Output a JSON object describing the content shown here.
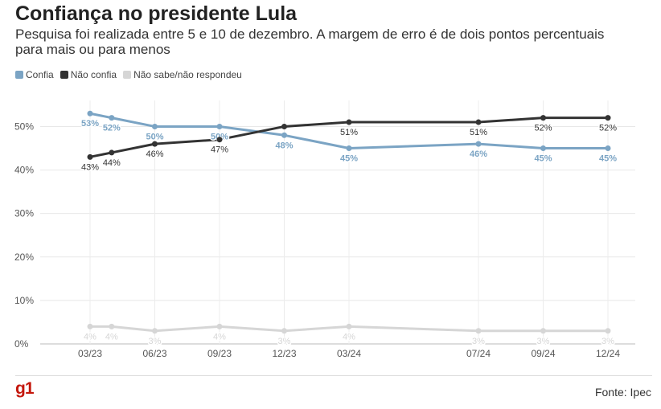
{
  "header": {
    "title": "Confiança no presidente Lula",
    "subtitle": "Pesquisa foi realizada entre 5 e 10 de dezembro. A margem de erro é de dois pontos percentuais para mais ou para menos"
  },
  "footer": {
    "logo": "g1",
    "source": "Fonte: Ipec"
  },
  "chart_data": {
    "type": "line",
    "x": [
      0,
      1,
      3,
      6,
      9,
      12,
      18,
      21,
      24
    ],
    "x_tick_labels": [
      {
        "x": 0,
        "label": "03/23"
      },
      {
        "x": 3,
        "label": "06/23"
      },
      {
        "x": 6,
        "label": "09/23"
      },
      {
        "x": 9,
        "label": "12/23"
      },
      {
        "x": 12,
        "label": "03/24"
      },
      {
        "x": 18,
        "label": "07/24"
      },
      {
        "x": 21,
        "label": "09/24"
      },
      {
        "x": 24,
        "label": "12/24"
      }
    ],
    "y_ticks": [
      0,
      10,
      20,
      30,
      40,
      50
    ],
    "y_tick_labels": [
      "0%",
      "10%",
      "20%",
      "30%",
      "40%",
      "50%"
    ],
    "ylim": [
      0,
      56
    ],
    "grid": true,
    "legend_position": "top-left",
    "series": [
      {
        "name": "Confia",
        "color": "#7ba4c4",
        "values": [
          53,
          52,
          50,
          50,
          48,
          45,
          46,
          45,
          45
        ],
        "labels": [
          "53%",
          "52%",
          "50%",
          "50%",
          "48%",
          "45%",
          "46%",
          "45%",
          "45%"
        ],
        "label_pos": [
          "below",
          "below",
          "below",
          "below",
          "below",
          "below",
          "below",
          "below",
          "below"
        ]
      },
      {
        "name": "Não confia",
        "color": "#333333",
        "values": [
          43,
          44,
          46,
          47,
          50,
          51,
          51,
          52,
          52
        ],
        "labels": [
          "43%",
          "44%",
          "46%",
          "47%",
          "",
          "51%",
          "51%",
          "52%",
          "52%"
        ],
        "label_pos": [
          "below",
          "below",
          "below",
          "below",
          "below",
          "below",
          "below",
          "below",
          "below"
        ]
      },
      {
        "name": "Não sabe/não respondeu",
        "color": "#d6d6d6",
        "values": [
          4,
          4,
          3,
          4,
          3,
          4,
          3,
          3,
          3
        ],
        "labels": [
          "4%",
          "4%",
          "3%",
          "4%",
          "3%",
          "4%",
          "3%",
          "3%",
          "3%"
        ],
        "label_pos": [
          "below",
          "below",
          "below",
          "below",
          "below",
          "below",
          "below",
          "below",
          "below"
        ]
      }
    ]
  }
}
